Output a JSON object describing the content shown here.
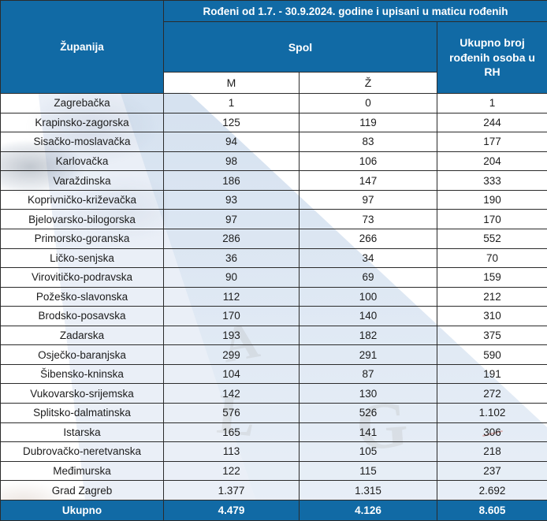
{
  "title_row": "Rođeni od 1.7. - 30.9.2024. godine i upisani u maticu rođenih",
  "header": {
    "zupanija": "Županija",
    "spol": "Spol",
    "m": "M",
    "z": "Ž",
    "ukupno_rh": "Ukupno broj rođenih osoba u RH"
  },
  "colors": {
    "header_blue": "#116AA5",
    "border": "#2b2b2b",
    "text": "#1c1c1c",
    "watermark_blue": "#c9d9ec"
  },
  "watermark": {
    "letters": [
      "A",
      "L",
      "G"
    ]
  },
  "table": {
    "rows": [
      {
        "zupanija": "Zagrebačka",
        "m": "1",
        "z": "0",
        "ukupno": "1"
      },
      {
        "zupanija": "Krapinsko-zagorska",
        "m": "125",
        "z": "119",
        "ukupno": "244"
      },
      {
        "zupanija": "Sisačko-moslavačka",
        "m": "94",
        "z": "83",
        "ukupno": "177"
      },
      {
        "zupanija": "Karlovačka",
        "m": "98",
        "z": "106",
        "ukupno": "204"
      },
      {
        "zupanija": "Varaždinska",
        "m": "186",
        "z": "147",
        "ukupno": "333"
      },
      {
        "zupanija": "Koprivničko-križevačka",
        "m": "93",
        "z": "97",
        "ukupno": "190"
      },
      {
        "zupanija": "Bjelovarsko-bilogorska",
        "m": "97",
        "z": "73",
        "ukupno": "170"
      },
      {
        "zupanija": "Primorsko-goranska",
        "m": "286",
        "z": "266",
        "ukupno": "552"
      },
      {
        "zupanija": "Ličko-senjska",
        "m": "36",
        "z": "34",
        "ukupno": "70"
      },
      {
        "zupanija": "Virovitičko-podravska",
        "m": "90",
        "z": "69",
        "ukupno": "159"
      },
      {
        "zupanija": "Požeško-slavonska",
        "m": "112",
        "z": "100",
        "ukupno": "212"
      },
      {
        "zupanija": "Brodsko-posavska",
        "m": "170",
        "z": "140",
        "ukupno": "310"
      },
      {
        "zupanija": "Zadarska",
        "m": "193",
        "z": "182",
        "ukupno": "375"
      },
      {
        "zupanija": "Osječko-baranjska",
        "m": "299",
        "z": "291",
        "ukupno": "590"
      },
      {
        "zupanija": "Šibensko-kninska",
        "m": "104",
        "z": "87",
        "ukupno": "191"
      },
      {
        "zupanija": "Vukovarsko-srijemska",
        "m": "142",
        "z": "130",
        "ukupno": "272"
      },
      {
        "zupanija": "Splitsko-dalmatinska",
        "m": "576",
        "z": "526",
        "ukupno": "1.102"
      },
      {
        "zupanija": "Istarska",
        "m": "165",
        "z": "141",
        "ukupno": "306"
      },
      {
        "zupanija": "Dubrovačko-neretvanska",
        "m": "113",
        "z": "105",
        "ukupno": "218"
      },
      {
        "zupanija": "Međimurska",
        "m": "122",
        "z": "115",
        "ukupno": "237"
      },
      {
        "zupanija": "Grad Zagreb",
        "m": "1.377",
        "z": "1.315",
        "ukupno": "2.692"
      }
    ],
    "footer": {
      "label": "Ukupno",
      "m": "4.479",
      "z": "4.126",
      "ukupno": "8.605"
    }
  }
}
